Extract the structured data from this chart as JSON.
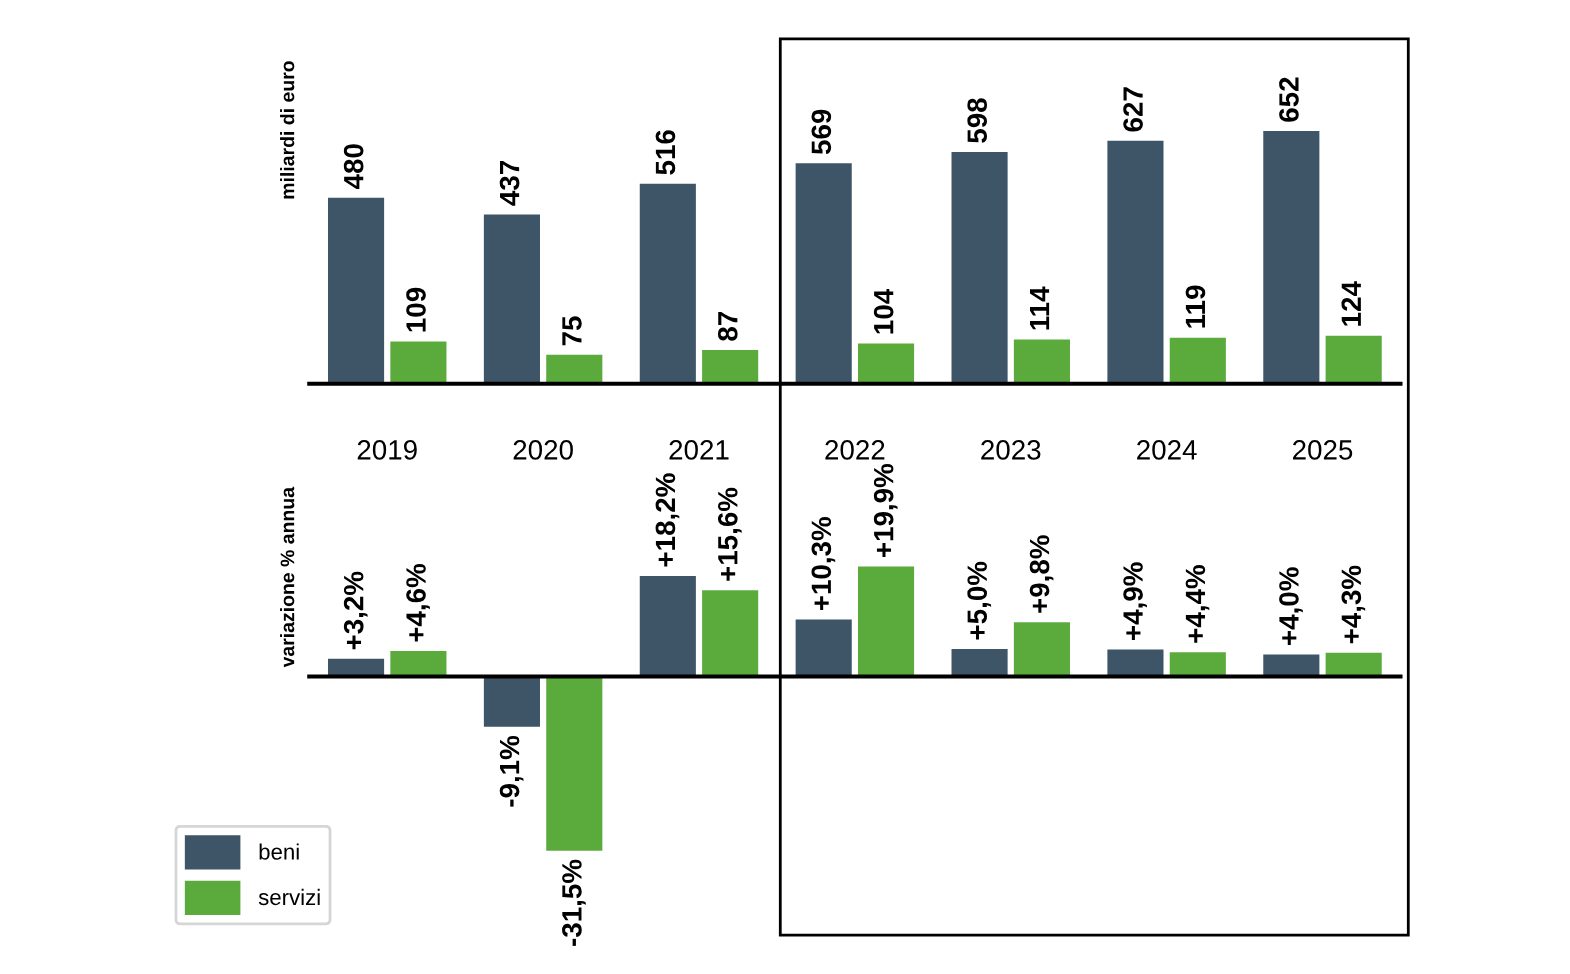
{
  "chart_data": [
    {
      "type": "bar",
      "ylabel": "miliardi di euro",
      "categories": [
        "2019",
        "2020",
        "2021",
        "2022",
        "2023",
        "2024",
        "2025"
      ],
      "data_labels": true,
      "tick_labels": "x",
      "legend": "bottom left",
      "grid": false,
      "series": [
        {
          "name": "beni",
          "color": "#3d5566",
          "values": [
            480,
            437,
            516,
            569,
            598,
            627,
            652
          ]
        },
        {
          "name": "servizi",
          "color": "#5aaa3c",
          "values": [
            109,
            75,
            87,
            104,
            114,
            119,
            124
          ]
        }
      ]
    },
    {
      "type": "bar",
      "ylabel": "variazione % annua",
      "categories": [
        "2019",
        "2020",
        "2021",
        "2022",
        "2023",
        "2024",
        "2025"
      ],
      "tick_labels": false,
      "grid": false,
      "series": [
        {
          "color": "#3d5566",
          "values": [
            3.2,
            -9.1,
            18.2,
            10.3,
            5.0,
            4.9,
            4.0
          ],
          "value_labels": [
            "+3,2%",
            "-9,1%",
            "+18,2%",
            "+10,3%",
            "+5,0%",
            "+4,9%",
            "+4,0%"
          ]
        },
        {
          "color": "#5aaa3c",
          "values": [
            4.6,
            -31.5,
            15.6,
            19.9,
            9.8,
            4.4,
            4.3
          ],
          "value_labels": [
            "+4,6%",
            "-31,5%",
            "+15,6%",
            "+19,9%",
            "+9,8%",
            "+4,4%",
            "+4,3%"
          ]
        }
      ]
    }
  ]
}
